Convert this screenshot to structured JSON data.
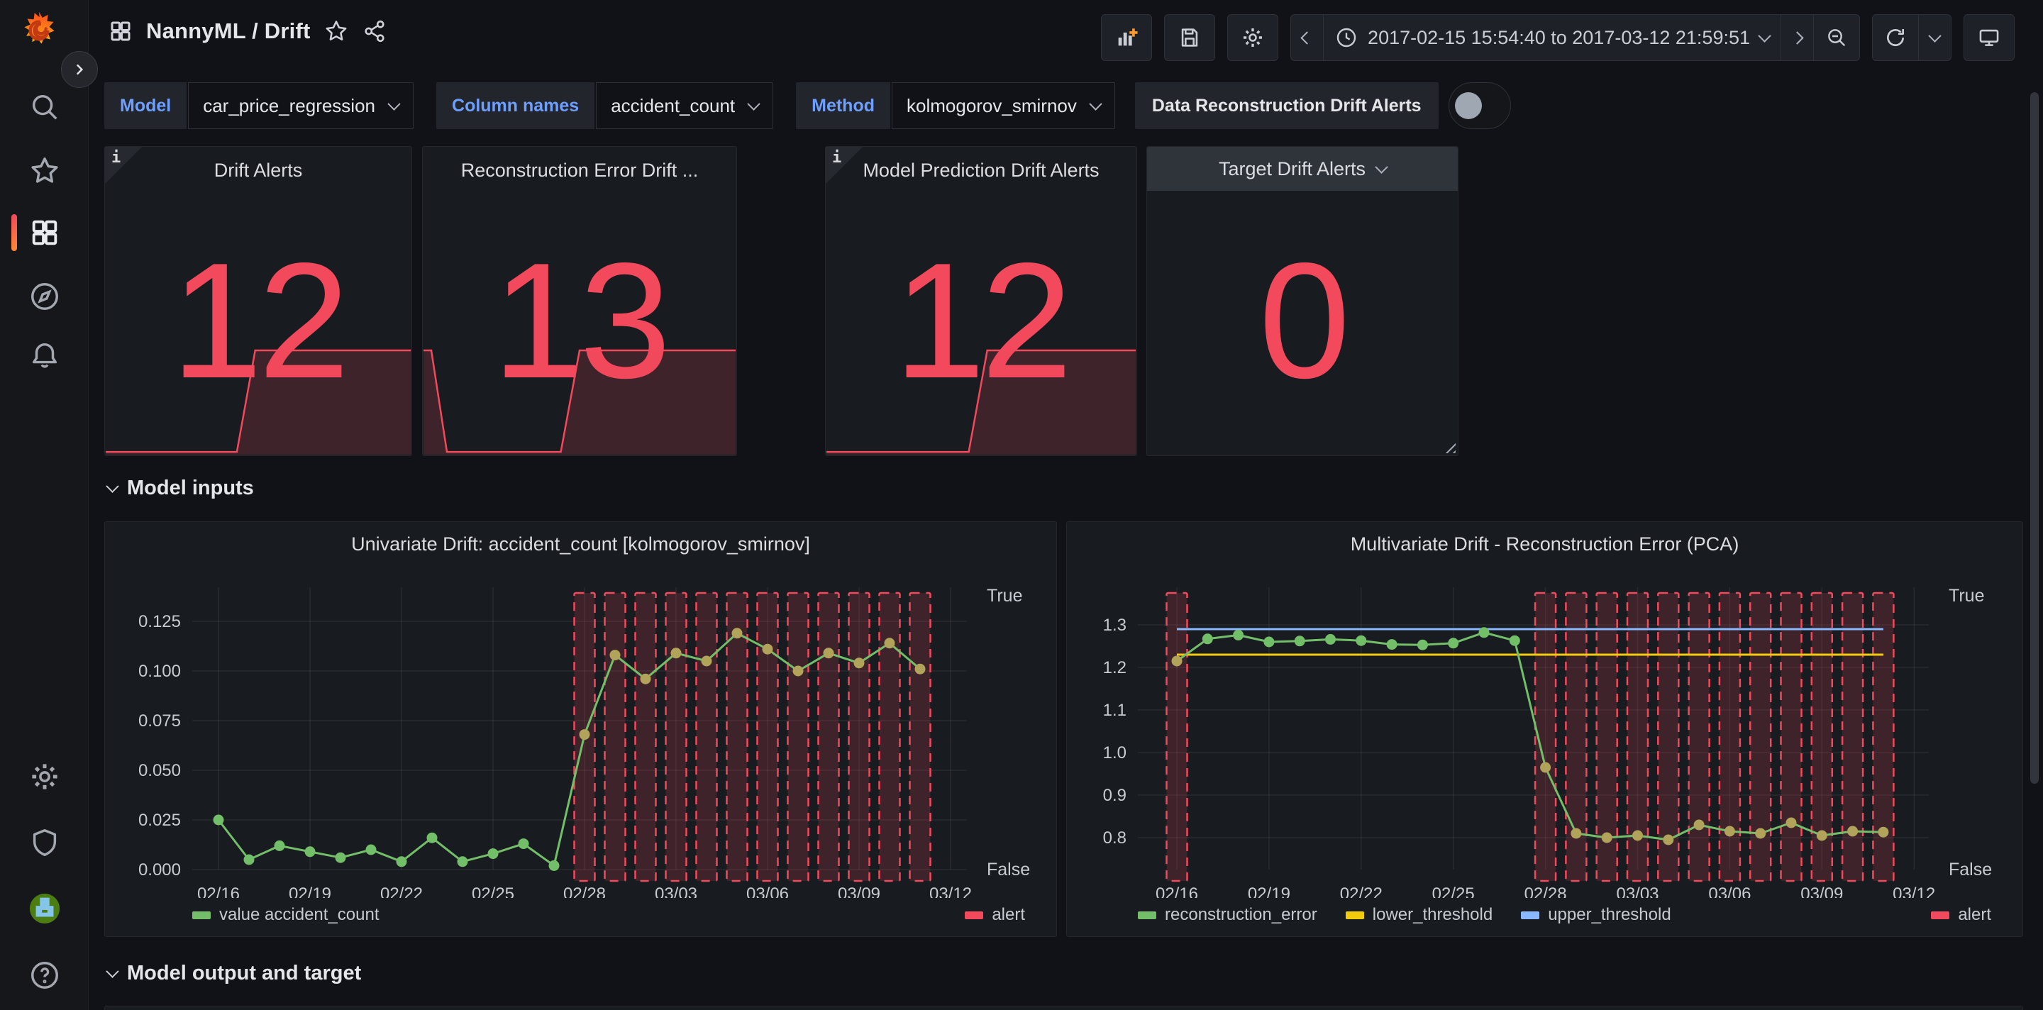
{
  "header": {
    "title": "NannyML / Drift",
    "time_range": "2017-02-15 15:54:40 to 2017-03-12 21:59:51"
  },
  "filters": {
    "model_label": "Model",
    "model_value": "car_price_regression",
    "column_label": "Column names",
    "column_value": "accident_count",
    "method_label": "Method",
    "method_value": "kolmogorov_smirnov",
    "toggle_label": "Data Reconstruction Drift Alerts",
    "toggle_state": "off"
  },
  "stats": [
    {
      "title": "Drift Alerts",
      "value": "12",
      "has_info": true,
      "sparkline": [
        [
          0,
          0.005
        ],
        [
          0.43,
          0.005
        ],
        [
          0.49,
          0.77
        ],
        [
          1,
          0.77
        ]
      ]
    },
    {
      "title": "Reconstruction Error Drift ...",
      "value": "13",
      "has_info": false,
      "sparkline": [
        [
          0,
          0.77
        ],
        [
          0.025,
          0.77
        ],
        [
          0.075,
          0.005
        ],
        [
          0.44,
          0.005
        ],
        [
          0.5,
          0.77
        ],
        [
          1,
          0.77
        ]
      ]
    },
    {
      "title": "Model Prediction Drift Alerts",
      "value": "12",
      "has_info": true,
      "sparkline": [
        [
          0,
          0.005
        ],
        [
          0.46,
          0.005
        ],
        [
          0.52,
          0.77
        ],
        [
          1,
          0.77
        ]
      ]
    },
    {
      "title": "Target Drift Alerts",
      "value": "0",
      "has_info": false,
      "dropdown_header": true,
      "sparkline": null
    }
  ],
  "sections": {
    "model_inputs": "Model inputs",
    "model_output": "Model output and target"
  },
  "colors": {
    "red": "#F2495C",
    "green": "#73BF69",
    "olive": "#b2a35b",
    "yellow": "#f2cc0c",
    "blue": "#8AB8FF",
    "grid": "rgba(255,255,255,0.07)",
    "axis_text": "#c8ccd2",
    "bar_fill": "rgba(242,73,92,0.18)"
  },
  "chart_data": [
    {
      "type": "line",
      "title": "Univariate Drift: accident_count [kolmogorov_smirnov]",
      "dates": [
        "02/16",
        "02/17",
        "02/18",
        "02/19",
        "02/20",
        "02/21",
        "02/22",
        "02/23",
        "02/24",
        "02/25",
        "02/26",
        "02/27",
        "02/28",
        "03/01",
        "03/02",
        "03/03",
        "03/04",
        "03/05",
        "03/06",
        "03/07",
        "03/08",
        "03/09",
        "03/10",
        "03/11"
      ],
      "values": [
        0.025,
        0.005,
        0.012,
        0.009,
        0.006,
        0.01,
        0.004,
        0.016,
        0.004,
        0.008,
        0.013,
        0.002,
        0.068,
        0.108,
        0.096,
        0.109,
        0.105,
        0.119,
        0.111,
        0.1,
        0.109,
        0.104,
        0.114,
        0.101
      ],
      "alert_days": [
        12,
        13,
        14,
        15,
        16,
        17,
        18,
        19,
        20,
        21,
        22,
        23
      ],
      "ylim": [
        0,
        0.14
      ],
      "yticks": [
        "0.000",
        "0.025",
        "0.050",
        "0.075",
        "0.100",
        "0.125"
      ],
      "ytick_values": [
        0,
        0.025,
        0.05,
        0.075,
        0.1,
        0.125
      ],
      "xticks": [
        "02/16",
        "02/19",
        "02/22",
        "02/25",
        "02/28",
        "03/03",
        "03/06",
        "03/09",
        "03/12"
      ],
      "right_axis": [
        "True",
        "False"
      ],
      "legend_left": [
        {
          "label": "value accident_count",
          "color": "#73BF69"
        }
      ],
      "legend_right": [
        {
          "label": "alert",
          "color": "#F2495C"
        }
      ]
    },
    {
      "type": "line",
      "title": "Multivariate Drift - Reconstruction Error (PCA)",
      "dates": [
        "02/16",
        "02/17",
        "02/18",
        "02/19",
        "02/20",
        "02/21",
        "02/22",
        "02/23",
        "02/24",
        "02/25",
        "02/26",
        "02/27",
        "02/28",
        "03/01",
        "03/02",
        "03/03",
        "03/04",
        "03/05",
        "03/06",
        "03/07",
        "03/08",
        "03/09",
        "03/10",
        "03/11"
      ],
      "values": [
        1.215,
        1.267,
        1.276,
        1.26,
        1.262,
        1.266,
        1.263,
        1.254,
        1.253,
        1.257,
        1.282,
        1.263,
        0.965,
        0.81,
        0.8,
        0.805,
        0.795,
        0.83,
        0.815,
        0.81,
        0.835,
        0.805,
        0.815,
        0.813
      ],
      "alert_days": [
        0,
        12,
        13,
        14,
        15,
        16,
        17,
        18,
        19,
        20,
        21,
        22,
        23
      ],
      "lower_threshold": 1.23,
      "upper_threshold": 1.29,
      "ylim": [
        0.75,
        1.33
      ],
      "yticks": [
        "0.8",
        "0.9",
        "1.0",
        "1.1",
        "1.2",
        "1.3"
      ],
      "ytick_values": [
        0.8,
        0.9,
        1.0,
        1.1,
        1.2,
        1.3
      ],
      "xticks": [
        "02/16",
        "02/19",
        "02/22",
        "02/25",
        "02/28",
        "03/03",
        "03/06",
        "03/09",
        "03/12"
      ],
      "right_axis": [
        "True",
        "False"
      ],
      "legend_left": [
        {
          "label": "reconstruction_error",
          "color": "#73BF69"
        },
        {
          "label": "lower_threshold",
          "color": "#f2cc0c"
        },
        {
          "label": "upper_threshold",
          "color": "#8AB8FF"
        }
      ],
      "legend_right": [
        {
          "label": "alert",
          "color": "#F2495C"
        }
      ]
    }
  ]
}
